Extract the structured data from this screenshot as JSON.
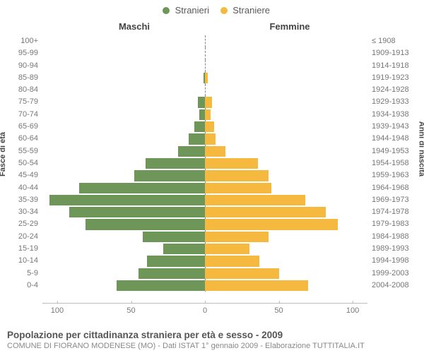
{
  "chart": {
    "type": "population-pyramid",
    "legend": {
      "male": {
        "label": "Stranieri",
        "color": "#6e9659"
      },
      "female": {
        "label": "Straniere",
        "color": "#f5b940"
      }
    },
    "column_titles": {
      "left": "Maschi",
      "right": "Femmine"
    },
    "y_axis_left_title": "Fasce di età",
    "y_axis_right_title": "Anni di nascita",
    "x_axis": {
      "max": 110,
      "ticks": [
        100,
        50,
        0,
        50,
        100
      ]
    },
    "background_color": "#ffffff",
    "grid_color": "#bbbbbb",
    "rows": [
      {
        "age": "100+",
        "birth": "≤ 1908",
        "m": 0,
        "f": 0
      },
      {
        "age": "95-99",
        "birth": "1909-1913",
        "m": 0,
        "f": 0
      },
      {
        "age": "90-94",
        "birth": "1914-1918",
        "m": 0,
        "f": 0
      },
      {
        "age": "85-89",
        "birth": "1919-1923",
        "m": 1,
        "f": 2
      },
      {
        "age": "80-84",
        "birth": "1924-1928",
        "m": 0,
        "f": 0
      },
      {
        "age": "75-79",
        "birth": "1929-1933",
        "m": 5,
        "f": 5
      },
      {
        "age": "70-74",
        "birth": "1934-1938",
        "m": 4,
        "f": 4
      },
      {
        "age": "65-69",
        "birth": "1939-1943",
        "m": 7,
        "f": 6
      },
      {
        "age": "60-64",
        "birth": "1944-1948",
        "m": 11,
        "f": 7
      },
      {
        "age": "55-59",
        "birth": "1949-1953",
        "m": 18,
        "f": 14
      },
      {
        "age": "50-54",
        "birth": "1954-1958",
        "m": 40,
        "f": 36
      },
      {
        "age": "45-49",
        "birth": "1959-1963",
        "m": 48,
        "f": 43
      },
      {
        "age": "40-44",
        "birth": "1964-1968",
        "m": 85,
        "f": 45
      },
      {
        "age": "35-39",
        "birth": "1969-1973",
        "m": 105,
        "f": 68
      },
      {
        "age": "30-34",
        "birth": "1974-1978",
        "m": 92,
        "f": 82
      },
      {
        "age": "25-29",
        "birth": "1979-1983",
        "m": 81,
        "f": 90
      },
      {
        "age": "20-24",
        "birth": "1984-1988",
        "m": 42,
        "f": 43
      },
      {
        "age": "15-19",
        "birth": "1989-1993",
        "m": 28,
        "f": 30
      },
      {
        "age": "10-14",
        "birth": "1994-1998",
        "m": 39,
        "f": 37
      },
      {
        "age": "5-9",
        "birth": "1999-2003",
        "m": 45,
        "f": 50
      },
      {
        "age": "0-4",
        "birth": "2004-2008",
        "m": 60,
        "f": 70
      }
    ],
    "footer": {
      "title": "Popolazione per cittadinanza straniera per età e sesso - 2009",
      "subtitle": "COMUNE DI FIORANO MODENESE (MO) - Dati ISTAT 1° gennaio 2009 - Elaborazione TUTTITALIA.IT"
    }
  }
}
